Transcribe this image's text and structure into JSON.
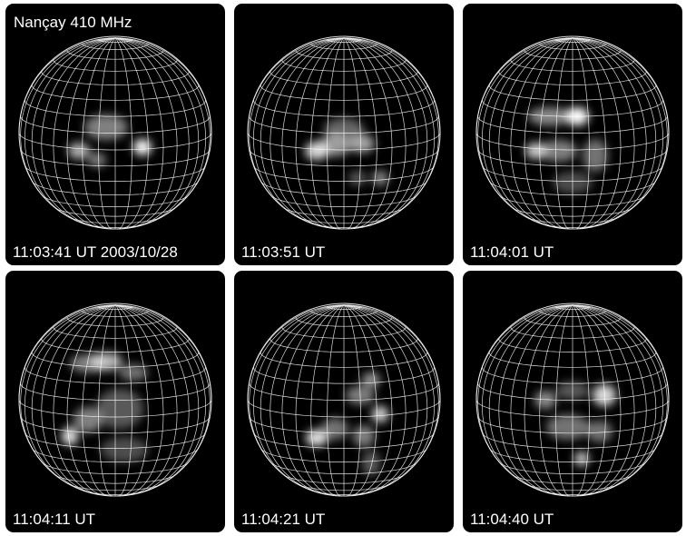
{
  "instrument_label": "Nançay 410 MHz",
  "colors": {
    "background": "#000000",
    "grid": "#ffffff",
    "emission": "#ffffff"
  },
  "panels": [
    {
      "time": "11:03:41 UT 2003/10/28"
    },
    {
      "time": "11:03:51 UT"
    },
    {
      "time": "11:04:01 UT"
    },
    {
      "time": "11:04:11 UT"
    },
    {
      "time": "11:04:21 UT"
    },
    {
      "time": "11:04:40 UT"
    }
  ]
}
